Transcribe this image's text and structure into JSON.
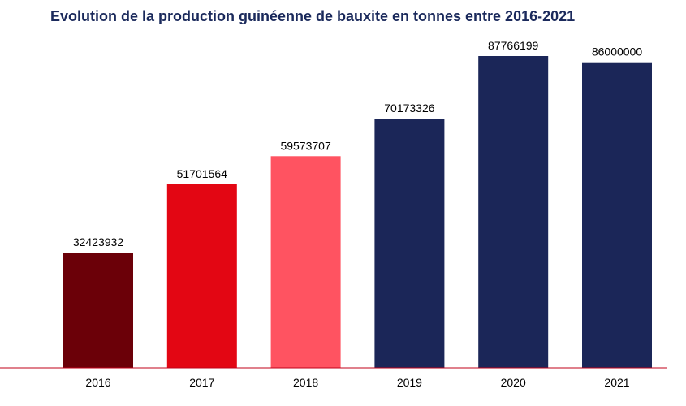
{
  "chart_data": {
    "type": "bar",
    "title": "Evolution de la production guinéenne de bauxite en tonnes entre 2016-2021",
    "xlabel": "",
    "ylabel": "",
    "categories": [
      "2016",
      "2017",
      "2018",
      "2019",
      "2020",
      "2021"
    ],
    "values": [
      32423932,
      51701564,
      59573707,
      70173326,
      87766199,
      86000000
    ],
    "bar_colors": [
      "#6b0008",
      "#e30613",
      "#ff5361",
      "#1b2658",
      "#1b2658",
      "#1b2658"
    ],
    "ylim": [
      0,
      87766199
    ],
    "grid": false,
    "legend": "none",
    "axis_color": "#c0001a"
  }
}
